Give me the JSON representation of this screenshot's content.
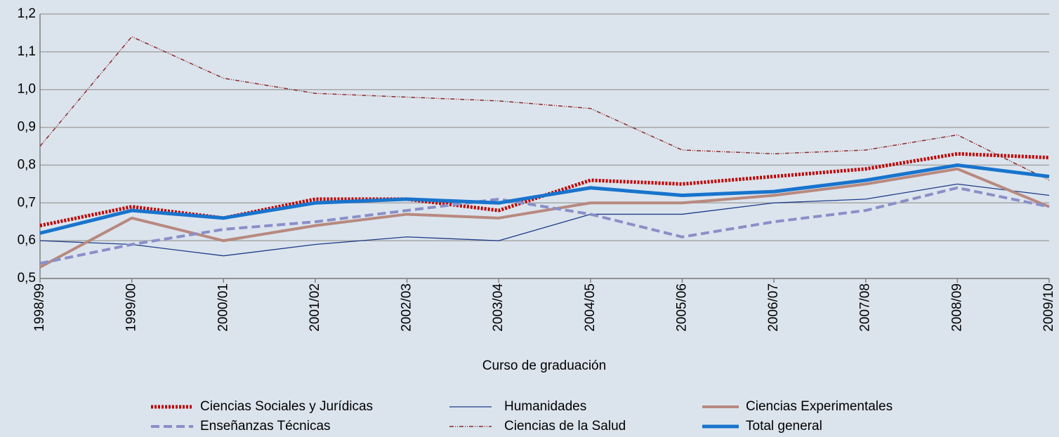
{
  "chart_data": {
    "type": "line",
    "x_label": "Curso de graduación",
    "categories": [
      "1998/99",
      "1999/00",
      "2000/01",
      "2001/02",
      "2002/03",
      "2003/04",
      "2004/05",
      "2005/06",
      "2006/07",
      "2007/08",
      "2008/09",
      "2009/10"
    ],
    "ylim": [
      0.5,
      1.2
    ],
    "yticks": [
      {
        "value": 0.5,
        "label": "0,5"
      },
      {
        "value": 0.6,
        "label": "0,6"
      },
      {
        "value": 0.7,
        "label": "0,7"
      },
      {
        "value": 0.8,
        "label": "0,8"
      },
      {
        "value": 0.9,
        "label": "0,9"
      },
      {
        "value": 1.0,
        "label": "1,0"
      },
      {
        "value": 1.1,
        "label": "1,1"
      },
      {
        "value": 1.2,
        "label": "1,2"
      }
    ],
    "grid": true,
    "legend": "bottom",
    "series": [
      {
        "name": "Ciencias Sociales y Jurídicas",
        "color": "#c00000",
        "values": [
          0.64,
          0.69,
          0.66,
          0.71,
          0.71,
          0.68,
          0.76,
          0.75,
          0.77,
          0.79,
          0.83,
          0.82
        ]
      },
      {
        "name": "Humanidades",
        "color": "#1f3c88",
        "values": [
          0.6,
          0.59,
          0.56,
          0.59,
          0.61,
          0.6,
          0.67,
          0.67,
          0.7,
          0.71,
          0.75,
          0.72
        ]
      },
      {
        "name": "Ciencias Experimentales",
        "color": "#b8897f",
        "values": [
          0.53,
          0.66,
          0.6,
          0.64,
          0.67,
          0.66,
          0.7,
          0.7,
          0.72,
          0.75,
          0.79,
          0.69
        ]
      },
      {
        "name": "Enseñanzas Técnicas",
        "color": "#8a8fc8",
        "values": [
          0.54,
          0.59,
          0.63,
          0.65,
          0.68,
          0.71,
          0.67,
          0.61,
          0.65,
          0.68,
          0.74,
          0.69
        ]
      },
      {
        "name": "Ciencias de la Salud",
        "color": "#8b2a2a",
        "values": [
          0.85,
          1.14,
          1.03,
          0.99,
          0.98,
          0.97,
          0.95,
          0.84,
          0.83,
          0.84,
          0.88,
          0.76
        ]
      },
      {
        "name": "Total general",
        "color": "#1874cd",
        "values": [
          0.62,
          0.68,
          0.66,
          0.7,
          0.71,
          0.7,
          0.74,
          0.72,
          0.73,
          0.76,
          0.8,
          0.77
        ]
      }
    ]
  }
}
